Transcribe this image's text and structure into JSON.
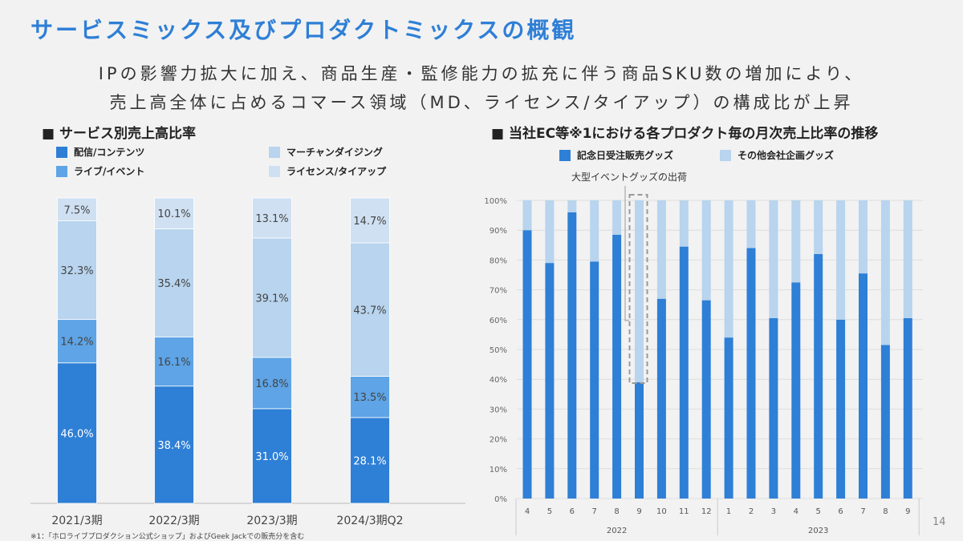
{
  "title": "サービスミックス及びプロダクトミックスの概観",
  "subtitle_lines": [
    "IPの影響力拡大に加え、商品生産・監修能力の拡充に伴う商品SKU数の増加により、",
    "売上高全体に占めるコマース領域（MD、ライセンス/タイアップ）の構成比が上昇"
  ],
  "footnote": "※1：「ホロライブプロダクション公式ショップ」およびGeek Jackでの販売分を含む",
  "page_number": "14",
  "colors": {
    "title": "#2e7fd6",
    "dark_blue": "#2e7fd6",
    "mid_blue": "#5ea4e6",
    "light_blue": "#b8d4ee",
    "lightest_blue": "#cfe0f2"
  },
  "chart_data": [
    {
      "type": "bar",
      "stacked": true,
      "title": "■ サービス別売上高比率",
      "categories": [
        "2021/3期",
        "2022/3期",
        "2023/3期",
        "2024/3期Q2"
      ],
      "series": [
        {
          "name": "配信/コンテンツ",
          "color": "#2e7fd6",
          "values": [
            46.0,
            38.4,
            31.0,
            28.1
          ]
        },
        {
          "name": "ライブ/イベント",
          "color": "#5ea4e6",
          "values": [
            14.2,
            16.1,
            16.8,
            13.5
          ]
        },
        {
          "name": "マーチャンダイジング",
          "color": "#b8d4ee",
          "values": [
            32.3,
            35.4,
            39.1,
            43.7
          ]
        },
        {
          "name": "ライセンス/タイアップ",
          "color": "#cfe0f2",
          "values": [
            7.5,
            10.1,
            13.1,
            14.7
          ]
        }
      ],
      "value_labels": [
        [
          "46.0%",
          "38.4%",
          "31.0%",
          "28.1%"
        ],
        [
          "14.2%",
          "16.1%",
          "16.8%",
          "13.5%"
        ],
        [
          "32.3%",
          "35.4%",
          "39.1%",
          "43.7%"
        ],
        [
          "7.5%",
          "10.1%",
          "13.1%",
          "14.7%"
        ]
      ],
      "legend": "top",
      "ylim": [
        0,
        100
      ]
    },
    {
      "type": "bar",
      "stacked": true,
      "title": "■ 当社EC等※1における各プロダクト毎の月次売上比率の推移",
      "categories": [
        "4",
        "5",
        "6",
        "7",
        "8",
        "9",
        "10",
        "11",
        "12",
        "1",
        "2",
        "3",
        "4",
        "5",
        "6",
        "7",
        "8",
        "9"
      ],
      "year_groups": [
        {
          "label": "2022",
          "count": 9
        },
        {
          "label": "2023",
          "count": 9
        }
      ],
      "series": [
        {
          "name": "記念日受注販売グッズ",
          "color": "#2e7fd6",
          "values": [
            90,
            79,
            96,
            79.5,
            88.5,
            39,
            67,
            84.5,
            66.5,
            54,
            84,
            60.5,
            72.5,
            82,
            60,
            75.5,
            51.5,
            60.5
          ]
        },
        {
          "name": "その他会社企画グッズ",
          "color": "#b8d4ee",
          "values": [
            10,
            21,
            4,
            20.5,
            11.5,
            61,
            33,
            15.5,
            33.5,
            46,
            16,
            39.5,
            27.5,
            18,
            40,
            24.5,
            48.5,
            39.5
          ]
        }
      ],
      "yticks": [
        "0%",
        "10%",
        "20%",
        "30%",
        "40%",
        "50%",
        "60%",
        "70%",
        "80%",
        "90%",
        "100%"
      ],
      "ylim": [
        0,
        100
      ],
      "grid": true,
      "legend": "top",
      "annotation": {
        "text": "大型イベントグッズの出荷",
        "category_index": 5
      }
    }
  ]
}
